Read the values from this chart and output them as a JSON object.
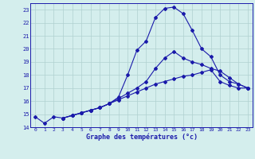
{
  "title": "Graphe des températures (°c)",
  "background_color": "#d4eeed",
  "grid_color": "#b0d0d0",
  "line_color": "#1a1aaa",
  "xlim": [
    -0.5,
    23.5
  ],
  "ylim": [
    14,
    23.5
  ],
  "xticks": [
    0,
    1,
    2,
    3,
    4,
    5,
    6,
    7,
    8,
    9,
    10,
    11,
    12,
    13,
    14,
    15,
    16,
    17,
    18,
    19,
    20,
    21,
    22,
    23
  ],
  "yticks": [
    14,
    15,
    16,
    17,
    18,
    19,
    20,
    21,
    22,
    23
  ],
  "curve1_x": [
    0,
    1,
    2,
    3,
    4,
    5,
    6,
    7,
    8,
    9,
    10,
    11,
    12,
    13,
    14,
    15,
    16,
    17,
    18,
    19,
    20,
    21,
    22,
    23
  ],
  "curve1_y": [
    14.8,
    14.3,
    14.8,
    14.7,
    14.9,
    15.1,
    15.3,
    15.5,
    15.8,
    16.3,
    18.0,
    19.9,
    20.6,
    22.4,
    23.1,
    23.2,
    22.7,
    21.4,
    20.0,
    19.4,
    18.0,
    17.5,
    17.3,
    17.0
  ],
  "curve2_x": [
    3,
    4,
    5,
    6,
    7,
    8,
    9,
    10,
    11,
    12,
    13,
    14,
    15,
    16,
    17,
    18,
    19,
    20,
    21,
    22,
    23
  ],
  "curve2_y": [
    14.7,
    14.9,
    15.1,
    15.3,
    15.5,
    15.8,
    16.2,
    16.6,
    17.0,
    17.5,
    18.5,
    19.3,
    19.8,
    19.3,
    19.0,
    18.8,
    18.5,
    18.3,
    17.8,
    17.3,
    17.0
  ],
  "curve3_x": [
    3,
    4,
    5,
    6,
    7,
    8,
    9,
    10,
    11,
    12,
    13,
    14,
    15,
    16,
    17,
    18,
    19,
    20,
    21,
    22,
    23
  ],
  "curve3_y": [
    14.7,
    14.9,
    15.1,
    15.3,
    15.5,
    15.8,
    16.1,
    16.4,
    16.7,
    17.0,
    17.3,
    17.5,
    17.7,
    17.9,
    18.0,
    18.2,
    18.4,
    17.5,
    17.2,
    17.0,
    17.0
  ]
}
